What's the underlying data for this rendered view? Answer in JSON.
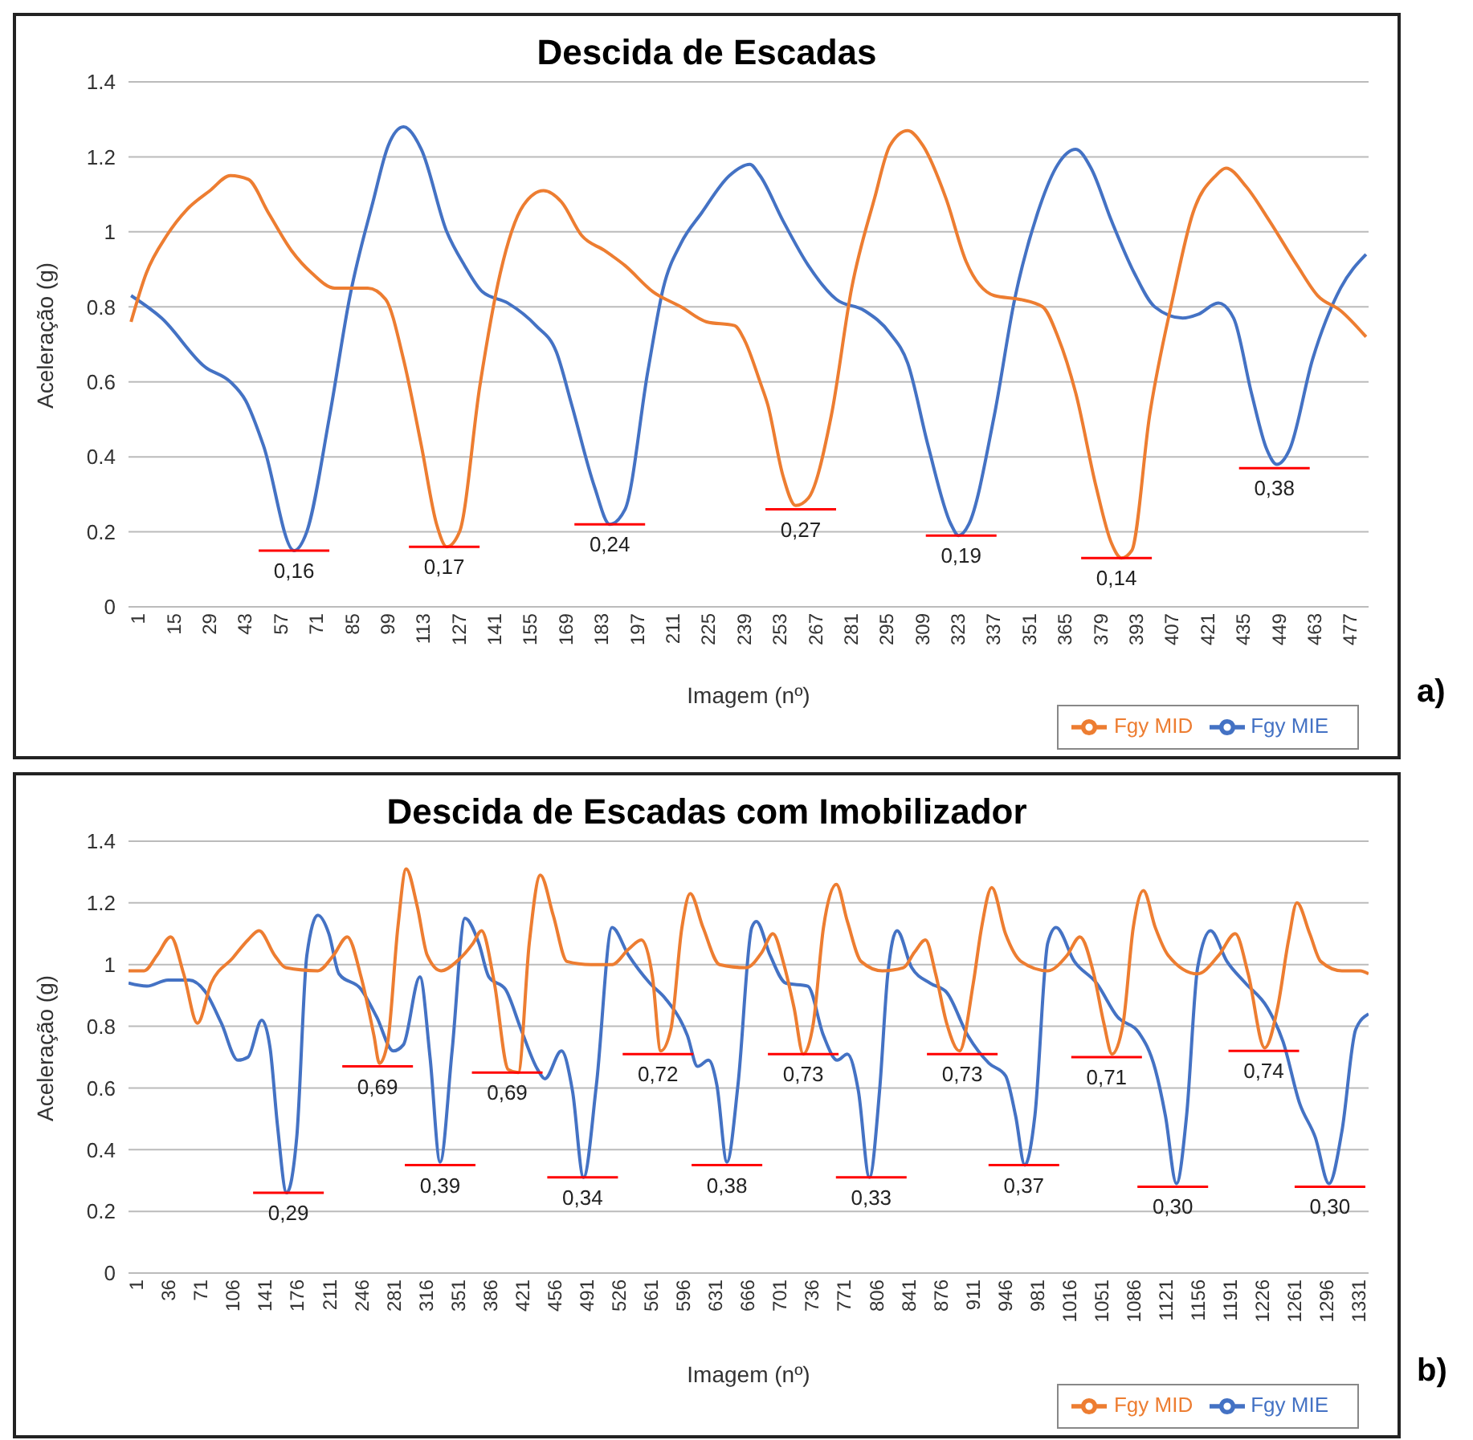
{
  "chart_data": [
    {
      "type": "line",
      "title": "Descida de Escadas",
      "xlabel": "Imagem (nº)",
      "ylabel": "Aceleração (g)",
      "xlim": [
        0,
        487
      ],
      "xticks": [
        1,
        15,
        29,
        43,
        57,
        71,
        85,
        99,
        113,
        127,
        141,
        155,
        169,
        183,
        197,
        211,
        225,
        239,
        253,
        267,
        281,
        295,
        309,
        323,
        337,
        351,
        365,
        379,
        393,
        407,
        421,
        435,
        449,
        463,
        477
      ],
      "ylim": [
        0,
        1.4
      ],
      "yticks": [
        0,
        0.2,
        0.4,
        0.6,
        0.8,
        1,
        1.2,
        1.4
      ],
      "grid": "y",
      "legend": "bottom right",
      "series": [
        {
          "name": "Fgy MIE",
          "color": "#4472c4",
          "x": [
            1,
            13,
            30,
            40,
            46,
            53,
            65,
            70,
            79,
            87,
            96,
            102,
            108,
            115,
            125,
            132,
            139,
            149,
            160,
            168,
            174,
            183,
            189,
            195,
            204,
            210,
            217,
            225,
            236,
            244,
            248,
            257,
            267,
            278,
            289,
            299,
            306,
            314,
            323,
            326,
            330,
            340,
            348,
            357,
            365,
            372,
            378,
            386,
            395,
            403,
            414,
            420,
            428,
            434,
            441,
            447,
            451,
            456,
            465,
            476,
            486
          ],
          "values": [
            0.83,
            0.77,
            0.64,
            0.6,
            0.55,
            0.43,
            0.15,
            0.2,
            0.51,
            0.83,
            1.08,
            1.23,
            1.28,
            1.22,
            1.0,
            0.91,
            0.84,
            0.81,
            0.75,
            0.68,
            0.54,
            0.32,
            0.22,
            0.26,
            0.63,
            0.85,
            0.97,
            1.05,
            1.15,
            1.18,
            1.15,
            1.03,
            0.91,
            0.82,
            0.79,
            0.73,
            0.65,
            0.43,
            0.22,
            0.19,
            0.22,
            0.51,
            0.82,
            1.05,
            1.18,
            1.22,
            1.17,
            1.03,
            0.89,
            0.8,
            0.77,
            0.78,
            0.81,
            0.77,
            0.57,
            0.42,
            0.38,
            0.42,
            0.66,
            0.85,
            0.94
          ]
        },
        {
          "name": "Fgy MID",
          "color": "#ed7d31",
          "x": [
            1,
            7,
            15,
            23,
            32,
            40,
            47,
            55,
            64,
            72,
            81,
            87,
            94,
            101,
            108,
            115,
            121,
            125,
            130,
            138,
            146,
            155,
            163,
            170,
            178,
            187,
            195,
            206,
            217,
            227,
            238,
            242,
            248,
            251,
            257,
            262,
            267,
            276,
            284,
            293,
            299,
            306,
            312,
            321,
            329,
            340,
            350,
            359,
            365,
            372,
            380,
            386,
            390,
            394,
            401,
            410,
            418,
            427,
            431,
            439,
            448,
            459,
            467,
            476,
            486
          ],
          "values": [
            0.76,
            0.89,
            0.99,
            1.06,
            1.11,
            1.15,
            1.14,
            1.05,
            0.95,
            0.89,
            0.85,
            0.85,
            0.85,
            0.82,
            0.66,
            0.43,
            0.22,
            0.16,
            0.2,
            0.59,
            0.89,
            1.07,
            1.11,
            1.08,
            0.99,
            0.95,
            0.91,
            0.84,
            0.8,
            0.76,
            0.75,
            0.71,
            0.6,
            0.54,
            0.35,
            0.27,
            0.29,
            0.51,
            0.85,
            1.09,
            1.23,
            1.27,
            1.23,
            1.09,
            0.92,
            0.83,
            0.82,
            0.8,
            0.72,
            0.57,
            0.32,
            0.17,
            0.13,
            0.15,
            0.51,
            0.82,
            1.05,
            1.15,
            1.17,
            1.12,
            1.03,
            0.91,
            0.83,
            0.79,
            0.72
          ]
        }
      ],
      "annotations": [
        {
          "text": "0,16",
          "x": 65,
          "y": 0.15
        },
        {
          "text": "0,17",
          "x": 124,
          "y": 0.16
        },
        {
          "text": "0,24",
          "x": 189,
          "y": 0.22
        },
        {
          "text": "0,27",
          "x": 264,
          "y": 0.26
        },
        {
          "text": "0,19",
          "x": 327,
          "y": 0.19
        },
        {
          "text": "0,14",
          "x": 388,
          "y": 0.13
        },
        {
          "text": "0,38",
          "x": 450,
          "y": 0.37
        },
        "a)"
      ]
    },
    {
      "type": "line",
      "title": "Descida de Escadas com Imobilizador",
      "xlabel": "Imagem (nº)",
      "ylabel": "Aceleração (g)",
      "xlim": [
        0,
        1349
      ],
      "xticks": [
        1,
        36,
        71,
        106,
        141,
        176,
        211,
        246,
        281,
        316,
        351,
        386,
        421,
        456,
        491,
        526,
        561,
        596,
        631,
        666,
        701,
        736,
        771,
        806,
        841,
        876,
        911,
        946,
        981,
        1016,
        1051,
        1086,
        1121,
        1156,
        1191,
        1226,
        1261,
        1296,
        1331
      ],
      "ylim": [
        0,
        1.4
      ],
      "yticks": [
        0,
        0.2,
        0.4,
        0.6,
        0.8,
        1,
        1.2,
        1.4
      ],
      "grid": "y",
      "legend": "bottom right",
      "series": [
        {
          "name": "Fgy MIE",
          "color": "#4472c4",
          "x": [
            0,
            20,
            43,
            66,
            84,
            101,
            119,
            130,
            145,
            154,
            162,
            172,
            183,
            194,
            206,
            218,
            229,
            253,
            270,
            288,
            299,
            317,
            328,
            339,
            352,
            366,
            381,
            392,
            410,
            427,
            445,
            453,
            471,
            483,
            495,
            509,
            526,
            544,
            567,
            584,
            608,
            619,
            631,
            640,
            651,
            663,
            678,
            683,
            698,
            715,
            739,
            756,
            771,
            782,
            794,
            806,
            817,
            826,
            836,
            852,
            872,
            890,
            913,
            936,
            954,
            965,
            975,
            986,
            1000,
            1009,
            1029,
            1053,
            1076,
            1099,
            1117,
            1128,
            1140,
            1151,
            1163,
            1177,
            1195,
            1215,
            1239,
            1256,
            1274,
            1291,
            1306,
            1320,
            1335,
            1349
          ],
          "values": [
            0.94,
            0.93,
            0.95,
            0.95,
            0.91,
            0.81,
            0.69,
            0.7,
            0.82,
            0.73,
            0.48,
            0.26,
            0.44,
            1.03,
            1.16,
            1.1,
            0.97,
            0.92,
            0.83,
            0.72,
            0.74,
            0.96,
            0.7,
            0.36,
            0.72,
            1.15,
            1.07,
            0.96,
            0.92,
            0.79,
            0.66,
            0.63,
            0.72,
            0.59,
            0.31,
            0.61,
            1.12,
            1.03,
            0.94,
            0.89,
            0.77,
            0.67,
            0.69,
            0.61,
            0.36,
            0.61,
            1.12,
            1.14,
            1.03,
            0.94,
            0.93,
            0.77,
            0.69,
            0.71,
            0.59,
            0.31,
            0.59,
            0.97,
            1.11,
            0.99,
            0.94,
            0.91,
            0.77,
            0.68,
            0.64,
            0.51,
            0.35,
            0.51,
            1.07,
            1.12,
            1.01,
            0.94,
            0.83,
            0.78,
            0.66,
            0.51,
            0.29,
            0.51,
            0.99,
            1.11,
            1.01,
            0.94,
            0.86,
            0.75,
            0.55,
            0.44,
            0.29,
            0.46,
            0.79,
            0.84
          ]
        },
        {
          "name": "Fgy MID",
          "color": "#ed7d31",
          "x": [
            0,
            17,
            31,
            46,
            60,
            75,
            90,
            113,
            130,
            142,
            159,
            171,
            206,
            223,
            238,
            253,
            267,
            273,
            282,
            293,
            302,
            314,
            325,
            340,
            357,
            375,
            384,
            398,
            413,
            424,
            436,
            448,
            462,
            477,
            503,
            526,
            544,
            558,
            570,
            579,
            590,
            602,
            611,
            625,
            643,
            672,
            689,
            701,
            713,
            724,
            734,
            745,
            756,
            770,
            782,
            797,
            820,
            843,
            855,
            867,
            878,
            890,
            904,
            919,
            928,
            939,
            954,
            971,
            1000,
            1021,
            1035,
            1050,
            1061,
            1070,
            1082,
            1093,
            1104,
            1117,
            1131,
            1163,
            1186,
            1204,
            1218,
            1236,
            1250,
            1262,
            1271,
            1285,
            1297,
            1320,
            1340,
            1349
          ],
          "values": [
            0.98,
            0.98,
            1.03,
            1.09,
            0.97,
            0.81,
            0.94,
            1.02,
            1.08,
            1.11,
            1.03,
            0.99,
            0.98,
            1.03,
            1.09,
            0.96,
            0.77,
            0.68,
            0.75,
            1.12,
            1.31,
            1.19,
            1.03,
            0.98,
            1.01,
            1.07,
            1.11,
            0.94,
            0.66,
            0.65,
            1.07,
            1.29,
            1.16,
            1.01,
            1.0,
            1.0,
            1.05,
            1.08,
            0.96,
            0.72,
            0.79,
            1.12,
            1.23,
            1.12,
            1.0,
            0.99,
            1.04,
            1.1,
            1.0,
            0.86,
            0.71,
            0.81,
            1.12,
            1.26,
            1.14,
            1.01,
            0.98,
            0.99,
            1.04,
            1.08,
            0.97,
            0.81,
            0.72,
            0.94,
            1.12,
            1.25,
            1.1,
            1.01,
            0.98,
            1.03,
            1.09,
            0.97,
            0.81,
            0.71,
            0.81,
            1.12,
            1.24,
            1.12,
            1.03,
            0.97,
            1.03,
            1.1,
            0.97,
            0.73,
            0.86,
            1.08,
            1.2,
            1.1,
            1.01,
            0.98,
            0.98,
            0.97
          ]
        }
      ],
      "annotations": [
        {
          "text": "0,29",
          "x": 174,
          "y": 0.26
        },
        {
          "text": "0,69",
          "x": 271,
          "y": 0.67
        },
        {
          "text": "0,39",
          "x": 339,
          "y": 0.35
        },
        {
          "text": "0,69",
          "x": 412,
          "y": 0.65
        },
        {
          "text": "0,34",
          "x": 494,
          "y": 0.31
        },
        {
          "text": "0,72",
          "x": 576,
          "y": 0.71
        },
        {
          "text": "0,38",
          "x": 651,
          "y": 0.35
        },
        {
          "text": "0,73",
          "x": 734,
          "y": 0.71
        },
        {
          "text": "0,33",
          "x": 808,
          "y": 0.31
        },
        {
          "text": "0,73",
          "x": 907,
          "y": 0.71
        },
        {
          "text": "0,37",
          "x": 974,
          "y": 0.35
        },
        {
          "text": "0,71",
          "x": 1064,
          "y": 0.7
        },
        {
          "text": "0,30",
          "x": 1136,
          "y": 0.28
        },
        {
          "text": "0,74",
          "x": 1235,
          "y": 0.72
        },
        {
          "text": "0,30",
          "x": 1307,
          "y": 0.28
        },
        "b)"
      ]
    }
  ]
}
